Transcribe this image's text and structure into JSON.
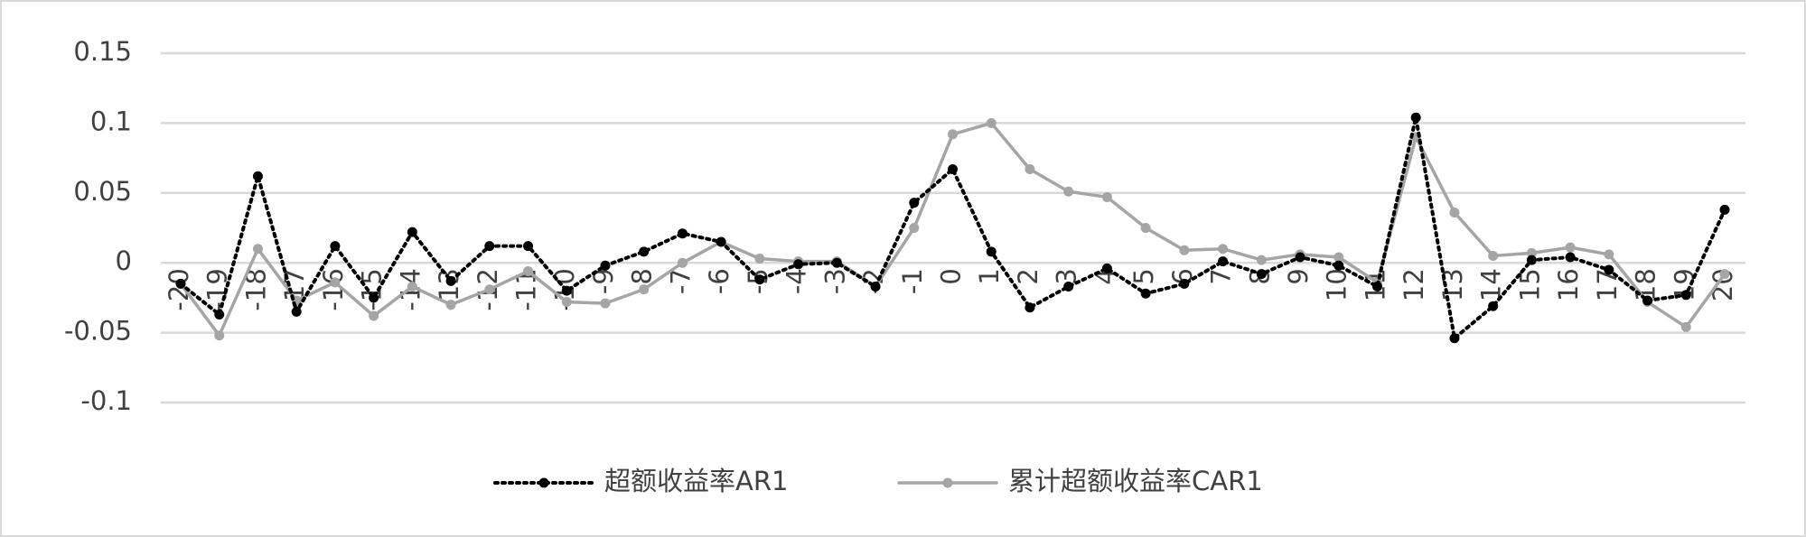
{
  "chart_data": {
    "type": "line",
    "categories": [
      "-20",
      "-19",
      "-18",
      "-17",
      "-16",
      "-15",
      "-14",
      "-13",
      "-12",
      "-11",
      "-10",
      "-9",
      "-8",
      "-7",
      "-6",
      "-5",
      "-4",
      "-3",
      "-2",
      "-1",
      "0",
      "1",
      "2",
      "3",
      "4",
      "5",
      "6",
      "7",
      "8",
      "9",
      "10",
      "11",
      "12",
      "13",
      "14",
      "15",
      "16",
      "17",
      "18",
      "19",
      "20"
    ],
    "series": [
      {
        "name": "超额收益率AR1",
        "color": "#000000",
        "dash": "dotted",
        "values": [
          -0.015,
          -0.037,
          0.062,
          -0.035,
          0.012,
          -0.025,
          0.022,
          -0.013,
          0.012,
          0.012,
          -0.02,
          -0.002,
          0.008,
          0.021,
          0.015,
          -0.012,
          -0.001,
          0,
          -0.017,
          0.043,
          0.067,
          0.008,
          -0.032,
          -0.017,
          -0.004,
          -0.022,
          -0.015,
          0.001,
          -0.008,
          0.004,
          -0.002,
          -0.017,
          0.104,
          -0.054,
          -0.031,
          0.002,
          0.004,
          -0.005,
          -0.027,
          -0.023,
          0.038
        ]
      },
      {
        "name": "累计超额收益率CAR1",
        "color": "#a5a5a5",
        "dash": "solid",
        "values": [
          -0.015,
          -0.052,
          0.01,
          -0.027,
          -0.014,
          -0.038,
          -0.017,
          -0.03,
          -0.019,
          -0.006,
          -0.028,
          -0.029,
          -0.019,
          0,
          0.015,
          0.003,
          0.001,
          0.001,
          -0.017,
          0.025,
          0.092,
          0.1,
          0.067,
          0.051,
          0.047,
          0.025,
          0.009,
          0.01,
          0.002,
          0.006,
          0.004,
          -0.014,
          0.09,
          0.036,
          0.005,
          0.007,
          0.011,
          0.006,
          -0.028,
          -0.046,
          -0.008
        ]
      }
    ],
    "ylim": [
      -0.1,
      0.15
    ],
    "yticks": [
      -0.1,
      -0.05,
      0,
      0.05,
      0.1,
      0.15
    ],
    "grid": true,
    "legend": "bottom"
  }
}
